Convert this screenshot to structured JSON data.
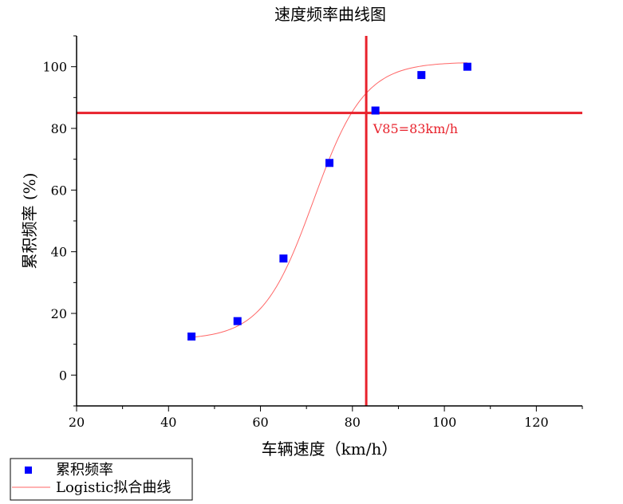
{
  "chart_data": {
    "type": "scatter",
    "title": "速度频率曲线图",
    "xlabel": "车辆速度（km/h）",
    "ylabel": "累积频率 (%)",
    "xlim": [
      20,
      130
    ],
    "ylim": [
      -10,
      110
    ],
    "xticks": [
      20,
      40,
      60,
      80,
      100,
      120
    ],
    "yticks": [
      0,
      20,
      40,
      60,
      80,
      100
    ],
    "grid": false,
    "legend_position": "bottom-left",
    "series": [
      {
        "name": "累积频率",
        "kind": "scatter",
        "marker": "square",
        "color": "#0000ff",
        "x": [
          45,
          55,
          65,
          75,
          85,
          95,
          105
        ],
        "y": [
          12.5,
          17.5,
          37.8,
          68.8,
          85.8,
          97.3,
          100
        ]
      },
      {
        "name": "Logistic拟合曲线",
        "kind": "line",
        "color": "#ff6666",
        "model": {
          "A1": 11.5,
          "A2": 101.5,
          "x0": 71.5,
          "k": 0.18
        },
        "x_range": [
          45,
          105
        ]
      }
    ],
    "reference_lines": {
      "vertical_x": 83,
      "horizontal_y": 85,
      "color": "#e8212b"
    },
    "annotations": [
      {
        "text": "V85=83km/h",
        "x": 84.5,
        "y": 78.5
      }
    ]
  }
}
